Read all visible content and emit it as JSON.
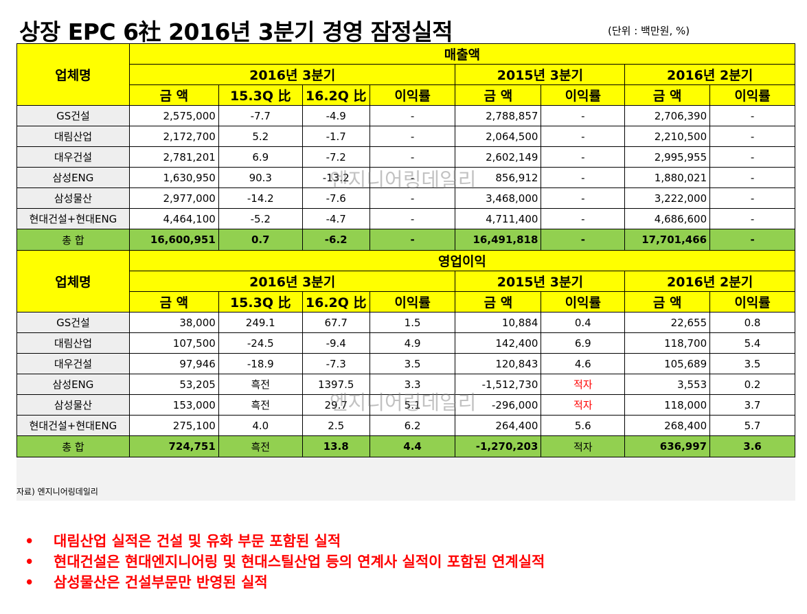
{
  "title": "상장 EPC 6社 2016년 3분기 경영 잠정실적",
  "unit": "(단위 : 백만원, %)",
  "corp_header": "업체명",
  "sections": [
    {
      "title": "매출액",
      "periods": [
        "2016년 3분기",
        "2015년 3분기",
        "2016년 2분기"
      ],
      "columns": [
        "금 액",
        "15.3Q 比",
        "16.2Q 比",
        "이익률",
        "금 액",
        "이익률",
        "금 액",
        "이익률"
      ],
      "rows": [
        {
          "name": "GS건설",
          "cells": [
            "2,575,000",
            "-7.7",
            "-4.9",
            "-",
            "2,788,857",
            "-",
            "2,706,390",
            "-"
          ]
        },
        {
          "name": "대림산업",
          "cells": [
            "2,172,700",
            "5.2",
            "-1.7",
            "-",
            "2,064,500",
            "-",
            "2,210,500",
            "-"
          ]
        },
        {
          "name": "대우건설",
          "cells": [
            "2,781,201",
            "6.9",
            "-7.2",
            "-",
            "2,602,149",
            "-",
            "2,995,955",
            "-"
          ]
        },
        {
          "name": "삼성ENG",
          "cells": [
            "1,630,950",
            "90.3",
            "-13.2",
            "-",
            "856,912",
            "-",
            "1,880,021",
            "-"
          ]
        },
        {
          "name": "삼성물산",
          "cells": [
            "2,977,000",
            "-14.2",
            "-7.6",
            "-",
            "3,468,000",
            "-",
            "3,222,000",
            "-"
          ]
        },
        {
          "name": "현대건설+현대ENG",
          "cells": [
            "4,464,100",
            "-5.2",
            "-4.7",
            "-",
            "4,711,400",
            "-",
            "4,686,600",
            "-"
          ]
        }
      ],
      "total": {
        "name": "총 합",
        "cells": [
          "16,600,951",
          "0.7",
          "-6.2",
          "-",
          "16,491,818",
          "-",
          "17,701,466",
          "-"
        ]
      }
    },
    {
      "title": "영업이익",
      "periods": [
        "2016년 3분기",
        "2015년 3분기",
        "2016년 2분기"
      ],
      "columns": [
        "금 액",
        "15.3Q 比",
        "16.2Q 比",
        "이익률",
        "금 액",
        "이익률",
        "금 액",
        "이익률"
      ],
      "rows": [
        {
          "name": "GS건설",
          "cells": [
            "38,000",
            "249.1",
            "67.7",
            "1.5",
            "10,884",
            "0.4",
            "22,655",
            "0.8"
          ]
        },
        {
          "name": "대림산업",
          "cells": [
            "107,500",
            "-24.5",
            "-9.4",
            "4.9",
            "142,400",
            "6.9",
            "118,700",
            "5.4"
          ]
        },
        {
          "name": "대우건설",
          "cells": [
            "97,946",
            "-18.9",
            "-7.3",
            "3.5",
            "120,843",
            "4.6",
            "105,689",
            "3.5"
          ]
        },
        {
          "name": "삼성ENG",
          "cells": [
            "53,205",
            "흑전",
            "1397.5",
            "3.3",
            "-1,512,730",
            "적자",
            "3,553",
            "0.2"
          ]
        },
        {
          "name": "삼성물산",
          "cells": [
            "153,000",
            "흑전",
            "29.7",
            "5.1",
            "-296,000",
            "적자",
            "118,000",
            "3.7"
          ]
        },
        {
          "name": "현대건설+현대ENG",
          "cells": [
            "275,100",
            "4.0",
            "2.5",
            "6.2",
            "264,400",
            "5.6",
            "268,400",
            "5.7"
          ]
        }
      ],
      "total": {
        "name": "총 합",
        "cells": [
          "724,751",
          "흑전",
          "13.8",
          "4.4",
          "-1,270,203",
          "적자",
          "636,997",
          "3.6"
        ]
      }
    }
  ],
  "source": "자료) 엔지니어링데일리",
  "watermark": "엔지니어링데일리",
  "notes": [
    "대림산업 실적은 건설 및 유화 부문 포함된 실적",
    "현대건설은 현대엔지니어링 및 현대스틸산업 등의 연계사 실적이 포함된 연계실적",
    "삼성물산은 건설부문만 반영된 실적"
  ],
  "colors": {
    "header": "#ffff00",
    "total": "#92d050",
    "note": "#ff0000",
    "loss": "#ff0000",
    "name_cell": "#eeeeee"
  }
}
